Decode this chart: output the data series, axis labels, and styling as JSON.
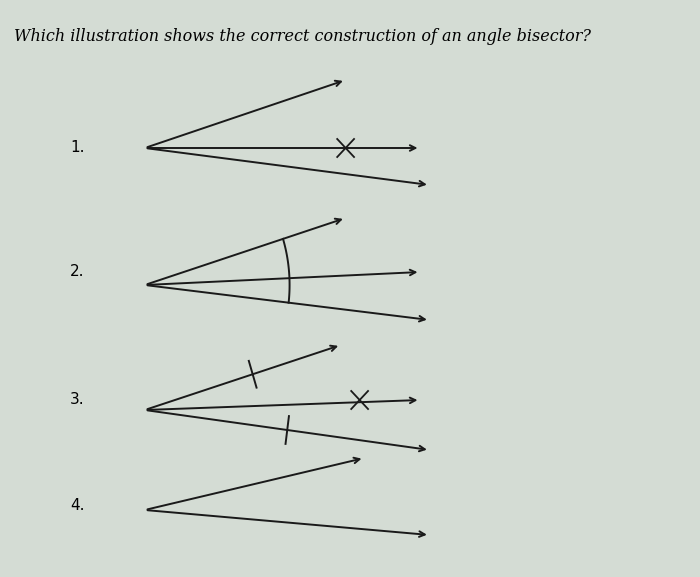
{
  "title": "Which illustration shows the correct construction of an angle bisector?",
  "title_fontsize": 11.5,
  "bg_color": "#d4dcd4",
  "line_color": "#1a1a1a",
  "labels": [
    "1.",
    "2.",
    "3.",
    "4."
  ],
  "figsize": [
    7.0,
    5.77
  ],
  "dpi": 100
}
